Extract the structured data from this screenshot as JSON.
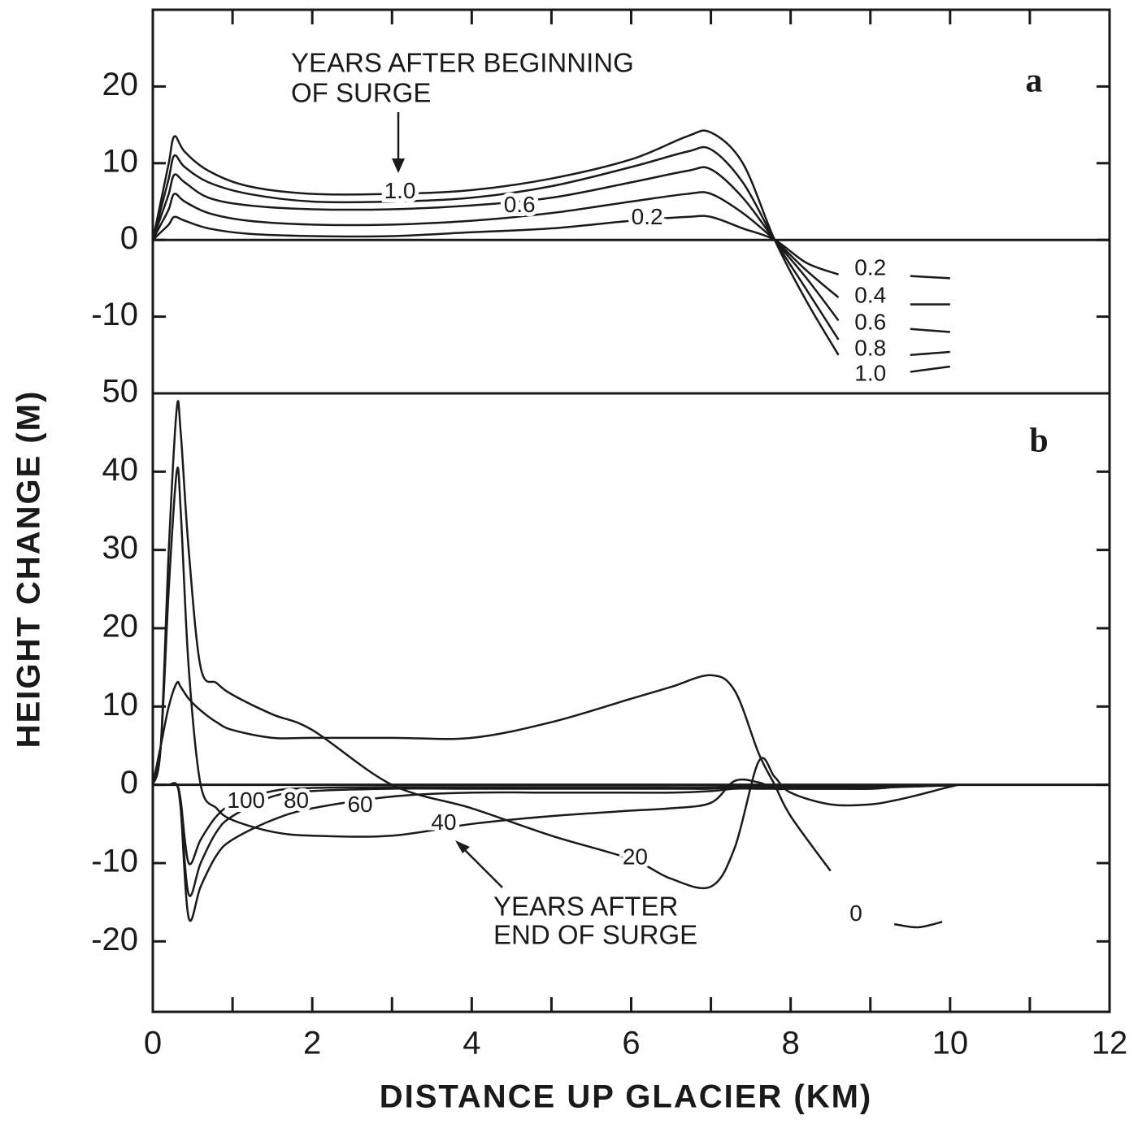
{
  "chart_data": [
    {
      "type": "line",
      "panel": "a",
      "x": [
        0,
        0.1,
        0.2,
        0.27,
        0.4,
        0.7,
        1.2,
        2,
        3,
        4,
        5,
        6,
        6.7,
        7.0,
        7.4,
        7.8,
        8.2,
        8.6,
        9.0,
        9.5,
        10.0
      ],
      "series": [
        {
          "name": "0.2",
          "color": "#1a1a1a",
          "values": [
            0,
            1,
            2,
            3,
            2.5,
            1.5,
            0.8,
            0.5,
            0.5,
            1,
            1.5,
            2.5,
            3,
            3,
            1.5,
            0,
            -3,
            -4.5,
            null,
            -4.7,
            -5
          ]
        },
        {
          "name": "0.4",
          "color": "#1a1a1a",
          "values": [
            0,
            2,
            4,
            6,
            5,
            3.5,
            2.5,
            2,
            2,
            2.5,
            3.5,
            5,
            6,
            6,
            3.5,
            0,
            -4,
            -7.5,
            null,
            -8.4,
            -8.4
          ]
        },
        {
          "name": "0.6",
          "color": "#1a1a1a",
          "values": [
            0,
            3,
            6,
            8.5,
            7.5,
            5.5,
            4.5,
            4,
            4,
            4.5,
            5.5,
            7.5,
            9,
            9.2,
            5.5,
            0,
            -5,
            -10.5,
            null,
            -11.6,
            -12
          ]
        },
        {
          "name": "0.8",
          "color": "#1a1a1a",
          "values": [
            0,
            4,
            8,
            11,
            9.5,
            7.5,
            6,
            5,
            5,
            5.5,
            7,
            9.5,
            11.5,
            11.8,
            7.5,
            0,
            -6.5,
            -13,
            null,
            -15,
            -14.6
          ]
        },
        {
          "name": "1.0",
          "color": "#1a1a1a",
          "values": [
            0,
            5,
            10,
            13.5,
            11.5,
            9,
            7,
            6,
            6,
            6.5,
            8,
            10.5,
            13.5,
            14,
            10,
            0,
            -8,
            -15,
            null,
            -17.2,
            -16.5
          ]
        }
      ],
      "ylim": [
        -20,
        30
      ],
      "yticks": [
        20,
        10,
        0,
        -10
      ],
      "annotations": [
        "YEARS AFTER BEGINNING",
        "OF SURGE"
      ]
    },
    {
      "type": "line",
      "panel": "b",
      "x": [
        0,
        0.1,
        0.2,
        0.3,
        0.35,
        0.45,
        0.6,
        0.8,
        1,
        1.5,
        2,
        3,
        4,
        5,
        6,
        6.5,
        7,
        7.3,
        7.6,
        7.8,
        8,
        8.5,
        9,
        9.3,
        9.6,
        9.9,
        10.1
      ],
      "series": [
        {
          "name": "0",
          "color": "#1a1a1a",
          "values": [
            0,
            5,
            10,
            13,
            12.5,
            11,
            9.5,
            8,
            7,
            6,
            6,
            6,
            6,
            8,
            11,
            12.5,
            14,
            12,
            4,
            0,
            -4,
            -11,
            null,
            -17.8,
            -18.2,
            -17.5,
            null
          ]
        },
        {
          "name": "20",
          "color": "#1a1a1a",
          "values": [
            0,
            5,
            30,
            48,
            45,
            30,
            15,
            13,
            11.5,
            9,
            7,
            0,
            -3,
            -6.5,
            -9.5,
            -12,
            -13,
            -8,
            3,
            1,
            -1,
            -2.5,
            -2.5,
            -2,
            -1.3,
            -0.5,
            0
          ]
        },
        {
          "name": "40",
          "color": "#1a1a1a",
          "values": [
            0,
            5,
            25,
            40,
            35,
            15,
            0,
            -3,
            -4.5,
            -6,
            -6.5,
            -6.5,
            -5,
            -4,
            -3.3,
            -3,
            -2.3,
            0.5,
            0.3,
            -0.5,
            -0.5,
            -0.5,
            -0.5,
            -0.3,
            -0.2,
            -0.1,
            0
          ]
        },
        {
          "name": "60",
          "color": "#1a1a1a",
          "values": [
            0,
            0,
            0,
            0,
            -3,
            -17,
            -13,
            -9,
            -7,
            -4.5,
            -3,
            -1.5,
            -1,
            -1,
            -1,
            -1,
            -0.8,
            -0.5,
            -0.5,
            -0.5,
            -0.5,
            -0.5,
            -0.5,
            -0.3,
            -0.2,
            -0.1,
            0
          ]
        },
        {
          "name": "80",
          "color": "#1a1a1a",
          "values": [
            0,
            0,
            0,
            0,
            -3,
            -14,
            -10,
            -6,
            -4,
            -1.5,
            -0.8,
            -0.5,
            -0.5,
            -0.5,
            -0.5,
            -0.5,
            -0.5,
            -0.3,
            -0.3,
            -0.3,
            -0.3,
            -0.3,
            -0.3,
            -0.2,
            -0.1,
            -0.1,
            0
          ]
        },
        {
          "name": "100",
          "color": "#1a1a1a",
          "values": [
            0,
            0,
            0,
            0,
            -2,
            -10,
            -7,
            -4,
            -2.5,
            -0.8,
            -0.4,
            -0.3,
            -0.3,
            -0.3,
            -0.3,
            -0.3,
            -0.3,
            -0.2,
            -0.2,
            -0.2,
            -0.2,
            -0.2,
            -0.2,
            -0.1,
            -0.1,
            0,
            0
          ]
        }
      ],
      "ylim": [
        -29,
        50
      ],
      "yticks": [
        50,
        40,
        30,
        20,
        10,
        0,
        -10,
        -20
      ],
      "annotations": [
        "YEARS AFTER",
        "END OF SURGE"
      ]
    }
  ],
  "xlim": [
    0,
    12
  ],
  "xticks": [
    0,
    2,
    4,
    6,
    8,
    10,
    12
  ],
  "xlabel": "DISTANCE UP GLACIER (KM)",
  "ylabel": "HEIGHT CHANGE (M)"
}
